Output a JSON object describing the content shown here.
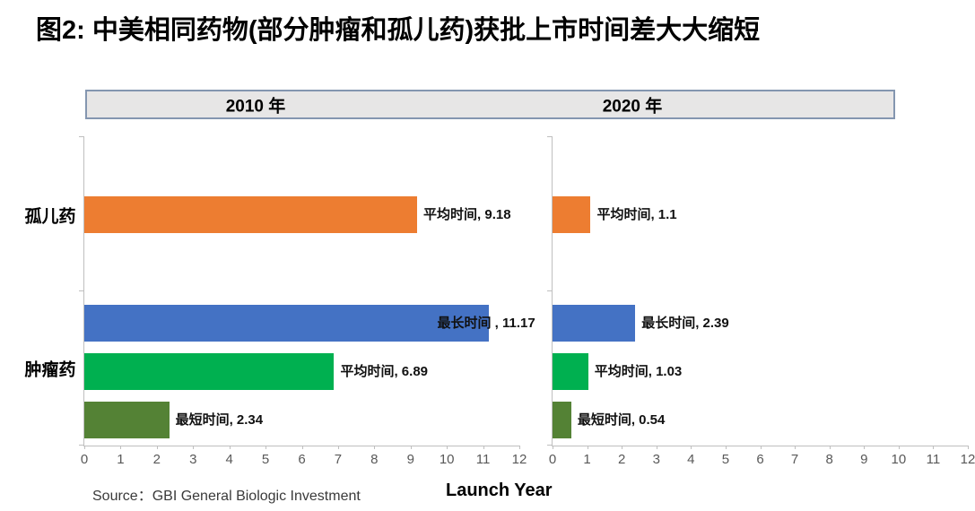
{
  "title": "图2: 中美相同药物(部分肿瘤和孤儿药)获批上市时间差大大缩短",
  "footer": {
    "source": "Source：GBI General Biologic Investment"
  },
  "colors": {
    "orange": "#ED7D31",
    "blue": "#4472C4",
    "green": "#00B050",
    "olive": "#548235",
    "axis": "#BFBFBF",
    "tick_text": "#595959",
    "band_fill": "#E7E6E6",
    "band_border": "#8496B0"
  },
  "chart_data": [
    {
      "type": "bar",
      "orientation": "horizontal",
      "title": "2010 年",
      "xlabel": "Launch Year",
      "xlim": [
        0,
        12
      ],
      "x_ticks": [
        0,
        1,
        2,
        3,
        4,
        5,
        6,
        7,
        8,
        9,
        10,
        11,
        12
      ],
      "grid": false,
      "legend": false,
      "categories": [
        "孤儿药",
        "肿瘤药"
      ],
      "bars": [
        {
          "key": "average-time",
          "group": "孤儿药",
          "series": "平均时间",
          "value": 9.18,
          "label": "平均时间, 9.18",
          "color": "#ED7D31"
        },
        {
          "key": "longest-time",
          "group": "肿瘤药",
          "series": "最长时间",
          "value": 11.17,
          "label": "最长时间 , 11.17",
          "color": "#4472C4",
          "label_inside": true
        },
        {
          "key": "average-time",
          "group": "肿瘤药",
          "series": "平均时间",
          "value": 6.89,
          "label": "平均时间, 6.89",
          "color": "#00B050"
        },
        {
          "key": "shortest-time",
          "group": "肿瘤药",
          "series": "最短时间",
          "value": 2.34,
          "label": "最短时间, 2.34",
          "color": "#548235"
        }
      ]
    },
    {
      "type": "bar",
      "orientation": "horizontal",
      "title": "2020 年",
      "xlabel": "Launch Year",
      "xlim": [
        0,
        12
      ],
      "x_ticks": [
        0,
        1,
        2,
        3,
        4,
        5,
        6,
        7,
        8,
        9,
        10,
        11,
        12
      ],
      "grid": false,
      "legend": false,
      "categories": [
        "孤儿药",
        "肿瘤药"
      ],
      "bars": [
        {
          "key": "average-time",
          "group": "孤儿药",
          "series": "平均时间",
          "value": 1.1,
          "label": "平均时间, 1.1",
          "color": "#ED7D31"
        },
        {
          "key": "longest-time",
          "group": "肿瘤药",
          "series": "最长时间",
          "value": 2.39,
          "label": "最长时间, 2.39",
          "color": "#4472C4"
        },
        {
          "key": "average-time",
          "group": "肿瘤药",
          "series": "平均时间",
          "value": 1.03,
          "label": "平均时间, 1.03",
          "color": "#00B050"
        },
        {
          "key": "shortest-time",
          "group": "肿瘤药",
          "series": "最短时间",
          "value": 0.54,
          "label": "最短时间, 0.54",
          "color": "#548235"
        }
      ]
    }
  ]
}
